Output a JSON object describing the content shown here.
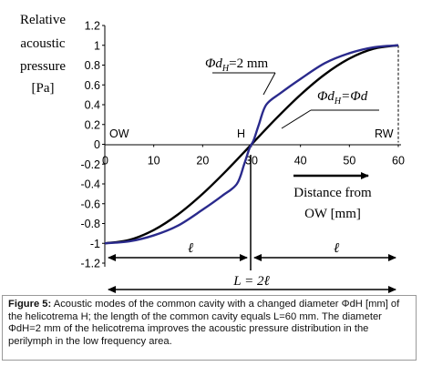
{
  "chart_data": {
    "type": "line",
    "ylabel_lines": [
      "Relative",
      "acoustic",
      "pressure",
      "[Pa]"
    ],
    "xlabel_lines": [
      "Distance from",
      "OW [mm]"
    ],
    "xlim": [
      0,
      60
    ],
    "ylim": [
      -1.2,
      1.2
    ],
    "x_ticks": [
      {
        "value": 0,
        "label": "0"
      },
      {
        "value": 10,
        "label": "10"
      },
      {
        "value": 20,
        "label": "20"
      },
      {
        "value": 30,
        "label": "30"
      },
      {
        "value": 40,
        "label": "40"
      },
      {
        "value": 50,
        "label": "50"
      },
      {
        "value": 60,
        "label": "60"
      }
    ],
    "y_ticks": [
      {
        "value": 1.2,
        "label": "1.2"
      },
      {
        "value": 1.0,
        "label": "1"
      },
      {
        "value": 0.8,
        "label": "0.8"
      },
      {
        "value": 0.6,
        "label": "0.6"
      },
      {
        "value": 0.4,
        "label": "0.4"
      },
      {
        "value": 0.2,
        "label": "0.2"
      },
      {
        "value": 0.0,
        "label": "0"
      },
      {
        "value": -0.2,
        "label": "-0.2"
      },
      {
        "value": -0.4,
        "label": "-0.4"
      },
      {
        "value": -0.6,
        "label": "-0.6"
      },
      {
        "value": -0.8,
        "label": "-0.8"
      },
      {
        "value": -1.0,
        "label": "-1"
      },
      {
        "value": -1.2,
        "label": "-1.2"
      }
    ],
    "series": [
      {
        "name": "Φd_H=Φd",
        "color": "#000000",
        "x": [
          0,
          5,
          10,
          15,
          20,
          25,
          30,
          35,
          40,
          45,
          50,
          55,
          60
        ],
        "y": [
          -1.0,
          -0.966,
          -0.866,
          -0.707,
          -0.5,
          -0.259,
          0.0,
          0.259,
          0.5,
          0.707,
          0.866,
          0.966,
          1.0
        ]
      },
      {
        "name": "Φd_H=2 mm",
        "color": "#2a2a8c",
        "x": [
          0,
          5,
          10,
          15,
          20,
          24,
          27,
          28.5,
          29.5,
          30,
          30.5,
          31.5,
          33,
          36,
          40,
          45,
          50,
          55,
          60
        ],
        "y": [
          -1.0,
          -0.98,
          -0.92,
          -0.82,
          -0.66,
          -0.52,
          -0.4,
          -0.2,
          -0.05,
          0.0,
          0.05,
          0.2,
          0.4,
          0.52,
          0.66,
          0.82,
          0.92,
          0.98,
          1.0
        ]
      }
    ],
    "annotations": {
      "ow": "OW",
      "h": "H",
      "rw": "RW",
      "label_2mm_prefix": "Φd",
      "label_2mm_sub": "H",
      "label_2mm_suffix": "=2 mm",
      "label_eq_prefix": "Φd",
      "label_eq_sub": "H",
      "label_eq_suffix": "=Φd",
      "ell_left": "ℓ",
      "ell_right": "ℓ",
      "total_length": "L = 2ℓ"
    }
  },
  "caption": {
    "label": "Figure 5:",
    "text": "Acoustic modes of the common cavity with a changed diameter ΦdH [mm] of the helicotrema H; the length of the common cavity equals L=60 mm. The diameter ΦdH=2 mm of the helicotrema improves the acoustic pressure distribution in the perilymph in the low frequency area."
  }
}
